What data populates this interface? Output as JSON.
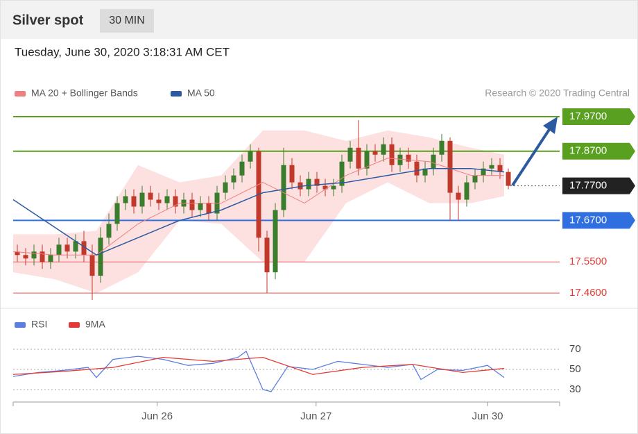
{
  "header": {
    "title": "Silver spot",
    "interval": "30 MIN"
  },
  "timestamp": "Tuesday, June 30, 2020 3:18:31 AM CET",
  "credit": "Research © 2020 Trading Central",
  "chart_data": [
    {
      "type": "candlestick",
      "up_color": "#3a7d2c",
      "down_color": "#c0392b",
      "xlim": [
        0,
        66
      ],
      "ylim": [
        17.42,
        18.0
      ],
      "open": [
        17.58,
        17.57,
        17.56,
        17.58,
        17.55,
        17.57,
        17.6,
        17.58,
        17.61,
        17.57,
        17.51,
        17.62,
        17.66,
        17.72,
        17.74,
        17.71,
        17.75,
        17.73,
        17.72,
        17.74,
        17.71,
        17.73,
        17.7,
        17.72,
        17.69,
        17.75,
        17.78,
        17.8,
        17.84,
        17.87,
        17.62,
        17.52,
        17.7,
        17.83,
        17.78,
        17.76,
        17.79,
        17.77,
        17.76,
        17.77,
        17.84,
        17.88,
        17.82,
        17.87,
        17.86,
        17.89,
        17.83,
        17.86,
        17.84,
        17.8,
        17.82,
        17.86,
        17.9,
        17.75,
        17.73,
        17.78,
        17.8,
        17.82,
        17.83,
        17.81
      ],
      "high": [
        17.6,
        17.59,
        17.6,
        17.6,
        17.59,
        17.62,
        17.62,
        17.63,
        17.64,
        17.6,
        17.65,
        17.69,
        17.74,
        17.76,
        17.76,
        17.77,
        17.77,
        17.75,
        17.76,
        17.76,
        17.75,
        17.75,
        17.74,
        17.74,
        17.77,
        17.8,
        17.82,
        17.86,
        17.89,
        17.88,
        17.64,
        17.72,
        17.88,
        17.85,
        17.8,
        17.81,
        17.81,
        17.79,
        17.79,
        17.86,
        17.9,
        17.96,
        17.89,
        17.89,
        17.91,
        17.91,
        17.88,
        17.88,
        17.86,
        17.84,
        17.88,
        17.92,
        17.91,
        17.77,
        17.8,
        17.82,
        17.84,
        17.85,
        17.85,
        17.82
      ],
      "low": [
        17.55,
        17.54,
        17.54,
        17.53,
        17.53,
        17.55,
        17.56,
        17.56,
        17.55,
        17.44,
        17.49,
        17.6,
        17.64,
        17.7,
        17.69,
        17.69,
        17.71,
        17.7,
        17.7,
        17.69,
        17.69,
        17.68,
        17.68,
        17.67,
        17.67,
        17.73,
        17.76,
        17.78,
        17.82,
        17.58,
        17.46,
        17.5,
        17.68,
        17.76,
        17.74,
        17.74,
        17.75,
        17.74,
        17.74,
        17.75,
        17.82,
        17.8,
        17.8,
        17.84,
        17.84,
        17.81,
        17.81,
        17.82,
        17.78,
        17.78,
        17.8,
        17.84,
        17.67,
        17.67,
        17.71,
        17.76,
        17.78,
        17.8,
        17.79,
        17.76
      ],
      "close": [
        17.57,
        17.56,
        17.58,
        17.55,
        17.57,
        17.6,
        17.58,
        17.61,
        17.57,
        17.51,
        17.62,
        17.66,
        17.72,
        17.74,
        17.71,
        17.75,
        17.73,
        17.72,
        17.74,
        17.71,
        17.73,
        17.7,
        17.72,
        17.69,
        17.75,
        17.78,
        17.8,
        17.84,
        17.87,
        17.62,
        17.52,
        17.7,
        17.83,
        17.78,
        17.76,
        17.79,
        17.77,
        17.76,
        17.77,
        17.84,
        17.88,
        17.82,
        17.87,
        17.86,
        17.89,
        17.83,
        17.86,
        17.84,
        17.8,
        17.82,
        17.86,
        17.9,
        17.75,
        17.73,
        17.78,
        17.8,
        17.82,
        17.83,
        17.81,
        17.77
      ],
      "series": [
        {
          "name": "MA 20 + Bollinger Bands",
          "color": "#f08080",
          "band_color": "#fde0e0",
          "x": [
            0,
            5,
            10,
            15,
            20,
            25,
            30,
            35,
            40,
            45,
            50,
            55,
            59
          ],
          "values": [
            17.58,
            17.57,
            17.57,
            17.66,
            17.72,
            17.72,
            17.78,
            17.72,
            17.8,
            17.85,
            17.84,
            17.8,
            17.8
          ],
          "upper": [
            17.63,
            17.63,
            17.64,
            17.83,
            17.78,
            17.8,
            17.93,
            17.93,
            17.9,
            17.93,
            17.91,
            17.88,
            17.86
          ],
          "lower": [
            17.52,
            17.5,
            17.46,
            17.52,
            17.67,
            17.66,
            17.55,
            17.55,
            17.72,
            17.78,
            17.72,
            17.72,
            17.74
          ]
        },
        {
          "name": "MA 50",
          "color": "#2c5aa0",
          "x": [
            0,
            5,
            10,
            15,
            20,
            25,
            30,
            35,
            40,
            45,
            50,
            55,
            59
          ],
          "values": [
            17.73,
            17.65,
            17.57,
            17.62,
            17.67,
            17.7,
            17.75,
            17.77,
            17.78,
            17.8,
            17.82,
            17.82,
            17.81
          ]
        }
      ],
      "levels": [
        {
          "value": 17.97,
          "label": "17.9700",
          "color": "#5aa020",
          "box": true
        },
        {
          "value": 17.87,
          "label": "17.8700",
          "color": "#5aa020",
          "box": true
        },
        {
          "value": 17.77,
          "label": "17.7700",
          "color": "#222222",
          "box": true,
          "dotted": true
        },
        {
          "value": 17.67,
          "label": "17.6700",
          "color": "#2f6fe0",
          "box": true
        },
        {
          "value": 17.55,
          "label": "17.5500",
          "color": "#f08080",
          "text_color": "#e53935",
          "box": false
        },
        {
          "value": 17.46,
          "label": "17.4600",
          "color": "#f08080",
          "text_color": "#e53935",
          "box": false
        }
      ]
    },
    {
      "type": "line",
      "xlim": [
        0,
        66
      ],
      "ylim": [
        20,
        80
      ],
      "yticks": [
        30,
        50,
        70
      ],
      "xticks": [
        {
          "value": 17.3,
          "label": "Jun 26"
        },
        {
          "value": 36.4,
          "label": "Jun 27"
        },
        {
          "value": 57,
          "label": "Jun 30"
        }
      ],
      "series": [
        {
          "name": "RSI",
          "color": "#5b7fde",
          "x": [
            0,
            3,
            6,
            9,
            10,
            12,
            15,
            18,
            21,
            24,
            27,
            28,
            30,
            31,
            33,
            36,
            39,
            42,
            45,
            48,
            49,
            51,
            54,
            57,
            59
          ],
          "values": [
            43,
            47,
            49,
            52,
            42,
            60,
            63,
            60,
            54,
            56,
            62,
            68,
            30,
            28,
            53,
            50,
            58,
            55,
            52,
            55,
            40,
            50,
            49,
            54,
            42
          ]
        },
        {
          "name": "9MA",
          "color": "#e53935",
          "x": [
            0,
            6,
            12,
            18,
            24,
            30,
            36,
            42,
            48,
            54,
            59
          ],
          "values": [
            45,
            48,
            52,
            62,
            58,
            62,
            45,
            52,
            55,
            47,
            51
          ]
        }
      ]
    }
  ]
}
